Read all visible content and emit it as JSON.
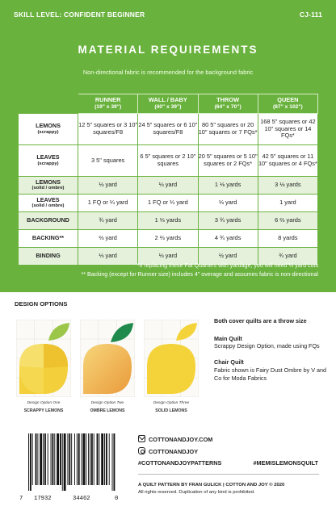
{
  "header": {
    "skill_level": "SKILL LEVEL: CONFIDENT BEGINNER",
    "code": "CJ-111"
  },
  "title": "MATERIAL REQUIREMENTS",
  "subtitle": "Non-directional fabric is recommended for the background fabric",
  "table": {
    "columns": [
      {
        "name": "RUNNER",
        "size": "(19\" x 39\")"
      },
      {
        "name": "WALL / BABY",
        "size": "(40\" x 39\")"
      },
      {
        "name": "THROW",
        "size": "(64\" x 70\")"
      },
      {
        "name": "QUEEN",
        "size": "(87\" x 102\")"
      }
    ],
    "rows": [
      {
        "label": "LEMONS",
        "sub": "(scrappy)",
        "cells": [
          "12  5\" squares or 3  10\" squares/F8",
          "24  5\" squares or 6  10\" squares/F8",
          "80  5\" squares or 20  10\" squares or 7 FQs*",
          "168  5\" squares or 42  10\" squares or 14 FQs*"
        ]
      },
      {
        "label": "LEAVES",
        "sub": "(scrappy)",
        "cells": [
          "3  5\" squares",
          "6  5\" squares or 2  10\" squares",
          "20  5\" squares or 5  10\" squares or 2 FQs*",
          "42  5\" squares or 11  10\" squares or 4 FQs*"
        ]
      },
      {
        "label": "LEMONS",
        "sub": "(solid / ombre)",
        "cells": [
          "⅓ yard",
          "⅓ yard",
          "1 ⅛ yards",
          "3 ⅛ yards"
        ]
      },
      {
        "label": "LEAVES",
        "sub": "(solid / ombre)",
        "cells": [
          "1 FQ or ¼ yard",
          "1 FQ or ¼ yard",
          "⅓ yard",
          "1 yard"
        ]
      },
      {
        "label": "BACKGROUND",
        "sub": "",
        "cells": [
          "¾ yard",
          "1 ⅓ yards",
          "3 ¾ yards",
          "6 ⅔ yards"
        ]
      },
      {
        "label": "BACKING**",
        "sub": "",
        "cells": [
          "⅔ yard",
          "2 ⅔ yards",
          "4 ¾ yards",
          "8 yards"
        ]
      },
      {
        "label": "BINDING",
        "sub": "",
        "cells": [
          "⅓ yard",
          "⅓ yard",
          "½ yard",
          "¾ yard"
        ]
      }
    ]
  },
  "footnotes": [
    "*If replacing these Fat Quarters with yardage, you will need ⅓ yard cuts",
    "** Backing (except for Runner size) includes 4\" overage and assumes fabric is non-directional"
  ],
  "design_options": {
    "title": "DESIGN OPTIONS",
    "items": [
      {
        "caption": "Design Option One",
        "name": "SCRAPPY LEMONS"
      },
      {
        "caption": "Design Option Two",
        "name": "OMBRE LEMONS"
      },
      {
        "caption": "Design Option Three",
        "name": "SOLID LEMONS"
      }
    ],
    "both_cover": "Both cover quilts are a throw size",
    "main_quilt_title": "Main Quilt",
    "main_quilt_text": "Scrappy Design Option, made using FQs",
    "chair_quilt_title": "Chair Quilt",
    "chair_quilt_text": "Fabric shown is Fairy Dust Ombre by V and Co for Moda Fabrics"
  },
  "footer": {
    "website": "COTTONANDJOY.COM",
    "instagram": "COTTONANDJOY",
    "hashtag1": "#COTTONANDJOYPATTERNS",
    "hashtag2": "#MEMISLEMONSQUILT",
    "credit_line": "A QUILT PATTERN BY FRAN GULICK  |  COTTON AND JOY © 2020",
    "rights": "All rights reserved. Duplication of any kind is prohibited.",
    "barcode_digits": [
      "7",
      "17932",
      "34462",
      "0"
    ]
  },
  "colors": {
    "brand_green": "#6ab23e",
    "shade_green": "#e6f1dc",
    "lemon_yellow": "#f4d33a",
    "leaf_green": "#8cc63f",
    "leaf_dark": "#1f8a4c"
  }
}
